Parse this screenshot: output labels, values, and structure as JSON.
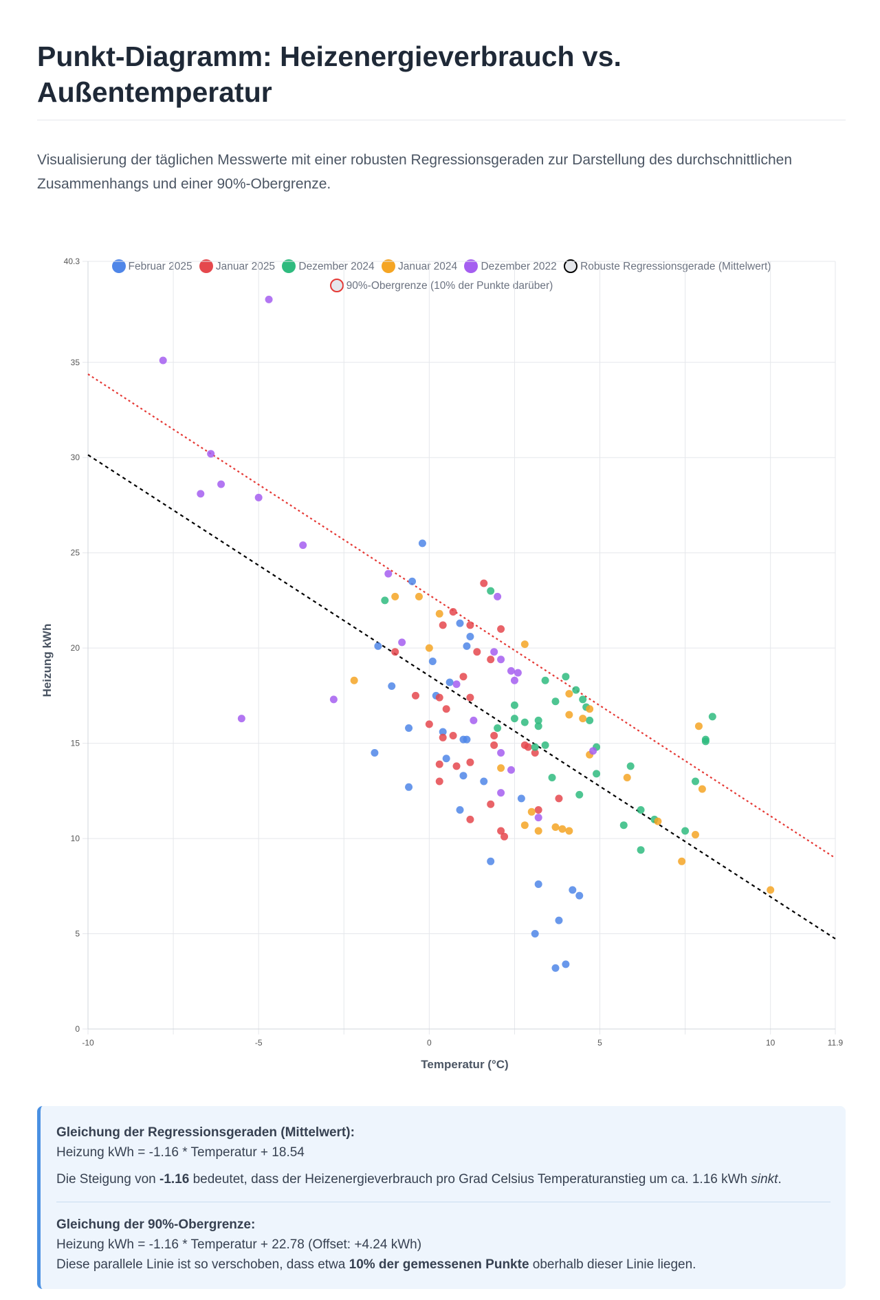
{
  "header": {
    "title": "Punkt-Diagramm: Heizenergieverbrauch vs. Außentemperatur",
    "subtitle": "Visualisierung der täglichen Messwerte mit einer robusten Regressionsgeraden zur Darstellung des durchschnittlichen Zusammenhangs und einer 90%-Obergrenze."
  },
  "legend": [
    {
      "label": "Februar 2025",
      "color": "#4f86e8"
    },
    {
      "label": "Januar 2025",
      "color": "#e5484d"
    },
    {
      "label": "Dezember 2024",
      "color": "#2fbb7f"
    },
    {
      "label": "Januar 2024",
      "color": "#f5a524"
    },
    {
      "label": "Dezember 2022",
      "color": "#a55ef0"
    },
    {
      "label": "Robuste Regressionsgerade (Mittelwert)",
      "color": "#000000"
    },
    {
      "label": "90%-Obergrenze (10% der Punkte darüber)",
      "color": "#e53935"
    }
  ],
  "chart_data": {
    "type": "scatter",
    "xlabel": "Temperatur (°C)",
    "ylabel": "Heizung kWh",
    "xlim": [
      -10,
      11.9
    ],
    "ylim": [
      0,
      40.3
    ],
    "x_ticks": [
      "-10",
      "-5",
      "0",
      "5",
      "10",
      "11.9"
    ],
    "x_tick_values": [
      -10,
      -5,
      0,
      5,
      10,
      11.9
    ],
    "y_ticks": [
      "0",
      "5",
      "10",
      "15",
      "20",
      "25",
      "30",
      "35",
      "40.3"
    ],
    "y_tick_values": [
      0,
      5,
      10,
      15,
      20,
      25,
      30,
      35,
      40.3
    ],
    "extra_x_gridlines": [
      -7.5,
      -2.5,
      2.5,
      7.5
    ],
    "series": [
      {
        "name": "Februar 2025",
        "color": "#4f86e8",
        "points": [
          [
            -0.2,
            25.5
          ],
          [
            -0.5,
            23.5
          ],
          [
            0.9,
            21.3
          ],
          [
            1.2,
            20.6
          ],
          [
            -1.5,
            20.1
          ],
          [
            1.1,
            20.1
          ],
          [
            0.1,
            19.3
          ],
          [
            -1.1,
            18.0
          ],
          [
            0.6,
            18.2
          ],
          [
            0.2,
            17.5
          ],
          [
            -0.6,
            15.8
          ],
          [
            0.4,
            15.6
          ],
          [
            1.0,
            15.2
          ],
          [
            1.1,
            15.2
          ],
          [
            -1.6,
            14.5
          ],
          [
            0.5,
            14.2
          ],
          [
            1.6,
            13.0
          ],
          [
            1.0,
            13.3
          ],
          [
            -0.6,
            12.7
          ],
          [
            0.9,
            11.5
          ],
          [
            2.7,
            12.1
          ],
          [
            1.8,
            8.8
          ],
          [
            3.2,
            7.6
          ],
          [
            4.2,
            7.3
          ],
          [
            4.4,
            7.0
          ],
          [
            3.8,
            5.7
          ],
          [
            3.1,
            5.0
          ],
          [
            4.0,
            3.4
          ],
          [
            3.7,
            3.2
          ]
        ]
      },
      {
        "name": "Januar 2025",
        "color": "#e5484d",
        "points": [
          [
            1.6,
            23.4
          ],
          [
            0.7,
            21.9
          ],
          [
            0.4,
            21.2
          ],
          [
            1.2,
            21.2
          ],
          [
            2.1,
            21.0
          ],
          [
            -1.0,
            19.8
          ],
          [
            1.4,
            19.8
          ],
          [
            1.8,
            19.4
          ],
          [
            1.0,
            18.5
          ],
          [
            -0.4,
            17.5
          ],
          [
            0.3,
            17.4
          ],
          [
            1.2,
            17.4
          ],
          [
            0.5,
            16.8
          ],
          [
            0.0,
            16.0
          ],
          [
            0.4,
            15.3
          ],
          [
            0.7,
            15.4
          ],
          [
            1.9,
            15.4
          ],
          [
            1.9,
            14.9
          ],
          [
            2.8,
            14.9
          ],
          [
            2.9,
            14.8
          ],
          [
            3.1,
            14.5
          ],
          [
            0.3,
            13.9
          ],
          [
            1.2,
            14.0
          ],
          [
            0.8,
            13.8
          ],
          [
            0.3,
            13.0
          ],
          [
            3.8,
            12.1
          ],
          [
            1.8,
            11.8
          ],
          [
            3.2,
            11.5
          ],
          [
            1.2,
            11.0
          ],
          [
            2.1,
            10.4
          ],
          [
            2.2,
            10.1
          ]
        ]
      },
      {
        "name": "Dezember 2024",
        "color": "#2fbb7f",
        "points": [
          [
            -1.3,
            22.5
          ],
          [
            1.8,
            23.0
          ],
          [
            4.0,
            18.5
          ],
          [
            3.4,
            18.3
          ],
          [
            4.3,
            17.8
          ],
          [
            3.7,
            17.2
          ],
          [
            4.5,
            17.3
          ],
          [
            4.6,
            16.9
          ],
          [
            2.5,
            17.0
          ],
          [
            4.7,
            16.2
          ],
          [
            2.5,
            16.3
          ],
          [
            2.8,
            16.1
          ],
          [
            3.2,
            16.2
          ],
          [
            3.2,
            15.9
          ],
          [
            2.0,
            15.8
          ],
          [
            8.3,
            16.4
          ],
          [
            8.1,
            15.2
          ],
          [
            8.1,
            15.1
          ],
          [
            3.4,
            14.9
          ],
          [
            3.1,
            14.8
          ],
          [
            4.9,
            14.8
          ],
          [
            5.9,
            13.8
          ],
          [
            4.9,
            13.4
          ],
          [
            3.6,
            13.2
          ],
          [
            7.8,
            13.0
          ],
          [
            4.4,
            12.3
          ],
          [
            6.2,
            11.5
          ],
          [
            6.6,
            11.0
          ],
          [
            5.7,
            10.7
          ],
          [
            7.5,
            10.4
          ],
          [
            6.2,
            9.4
          ]
        ]
      },
      {
        "name": "Januar 2024",
        "color": "#f5a524",
        "points": [
          [
            -1.0,
            22.7
          ],
          [
            -0.3,
            22.7
          ],
          [
            0.3,
            21.8
          ],
          [
            0.0,
            20.0
          ],
          [
            2.8,
            20.2
          ],
          [
            -2.2,
            18.3
          ],
          [
            4.1,
            17.6
          ],
          [
            4.7,
            16.8
          ],
          [
            4.5,
            16.3
          ],
          [
            4.1,
            16.5
          ],
          [
            7.9,
            15.9
          ],
          [
            4.7,
            14.4
          ],
          [
            2.1,
            13.7
          ],
          [
            5.8,
            13.2
          ],
          [
            8.0,
            12.6
          ],
          [
            3.0,
            11.4
          ],
          [
            6.7,
            10.9
          ],
          [
            2.8,
            10.7
          ],
          [
            3.7,
            10.6
          ],
          [
            3.9,
            10.5
          ],
          [
            4.1,
            10.4
          ],
          [
            3.2,
            10.4
          ],
          [
            7.8,
            10.2
          ],
          [
            7.4,
            8.8
          ],
          [
            10.0,
            7.3
          ]
        ]
      },
      {
        "name": "Dezember 2022",
        "color": "#a55ef0",
        "points": [
          [
            -4.7,
            38.3
          ],
          [
            -7.8,
            35.1
          ],
          [
            -6.4,
            30.2
          ],
          [
            -6.1,
            28.6
          ],
          [
            -6.7,
            28.1
          ],
          [
            -5.0,
            27.9
          ],
          [
            -3.7,
            25.4
          ],
          [
            -1.2,
            23.9
          ],
          [
            2.0,
            22.7
          ],
          [
            -0.8,
            20.3
          ],
          [
            1.9,
            19.8
          ],
          [
            2.1,
            19.4
          ],
          [
            2.4,
            18.8
          ],
          [
            2.6,
            18.7
          ],
          [
            0.8,
            18.1
          ],
          [
            2.5,
            18.3
          ],
          [
            -2.8,
            17.3
          ],
          [
            1.3,
            16.2
          ],
          [
            -5.5,
            16.3
          ],
          [
            2.1,
            14.5
          ],
          [
            2.4,
            13.6
          ],
          [
            4.8,
            14.6
          ],
          [
            2.1,
            12.4
          ],
          [
            3.2,
            11.1
          ]
        ]
      }
    ],
    "lines": [
      {
        "name": "Robuste Regressionsgerade (Mittelwert)",
        "slope": -1.16,
        "intercept": 18.54,
        "color": "#000000"
      },
      {
        "name": "90%-Obergrenze (10% der Punkte darüber)",
        "slope": -1.16,
        "intercept": 22.78,
        "color": "#e53935"
      }
    ]
  },
  "info": {
    "eq1_title": "Gleichung der Regressionsgeraden (Mittelwert):",
    "eq1_formula": "Heizung kWh = -1.16 * Temperatur + 18.54",
    "slope_text_pre": "Die Steigung von ",
    "slope_value": "-1.16",
    "slope_text_mid": " bedeutet, dass der Heizenergieverbrauch pro Grad Celsius Temperaturanstieg um ca. 1.16 kWh ",
    "slope_text_em": "sinkt",
    "slope_text_end": ".",
    "eq2_title": "Gleichung der 90%-Obergrenze:",
    "eq2_formula": "Heizung kWh = -1.16 * Temperatur + 22.78 (Offset: +4.24 kWh)",
    "eq2_text_pre": "Diese parallele Linie ist so verschoben, dass etwa ",
    "eq2_text_bold": "10% der gemessenen Punkte",
    "eq2_text_end": " oberhalb dieser Linie liegen."
  }
}
